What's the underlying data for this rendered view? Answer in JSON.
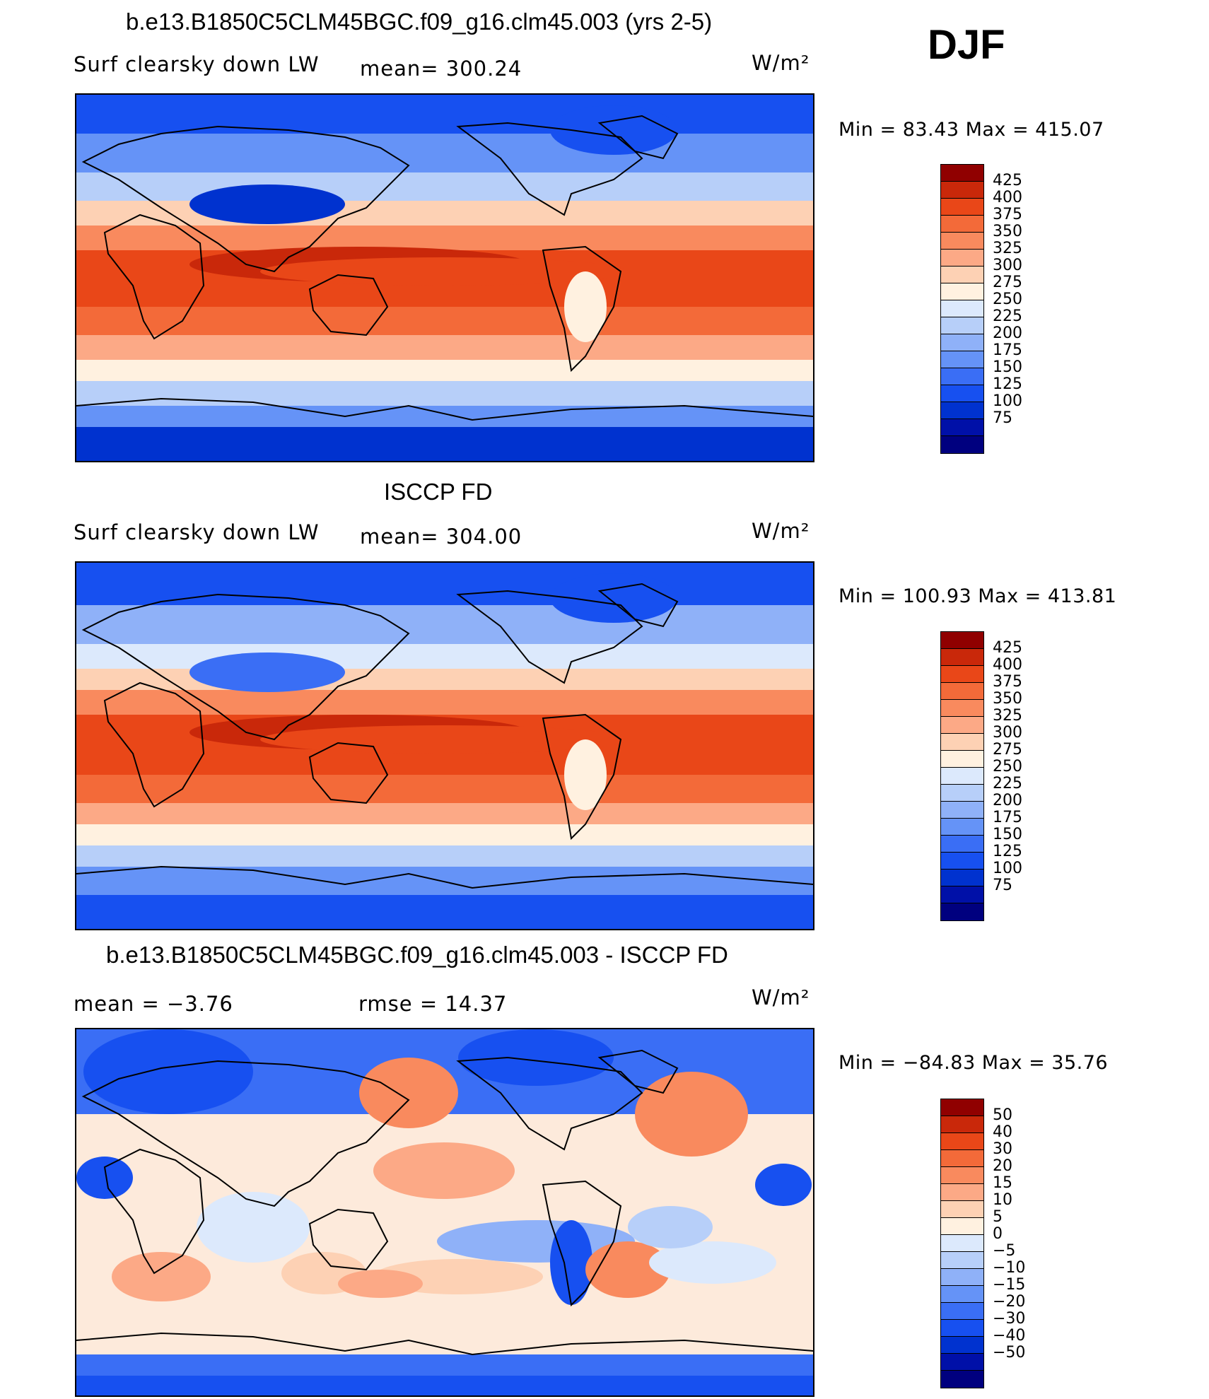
{
  "season": "DJF",
  "colors": {
    "sequential": [
      "#00007f",
      "#0010a8",
      "#0032cf",
      "#1750f0",
      "#3a6ef5",
      "#6593f7",
      "#8fb1f8",
      "#b7cff9",
      "#dce9fc",
      "#fff1e0",
      "#fdd1b4",
      "#fca986",
      "#f98a5e",
      "#f36a39",
      "#e94718",
      "#c9280a",
      "#900000"
    ],
    "diverging": [
      "#00007f",
      "#0010a8",
      "#0032cf",
      "#1750f0",
      "#3a6ef5",
      "#6593f7",
      "#8fb1f8",
      "#b7cff9",
      "#dce9fc",
      "#fff1e0",
      "#fdd1b4",
      "#fca986",
      "#f98a5e",
      "#f36a39",
      "#e94718",
      "#c9280a",
      "#900000"
    ]
  },
  "panels": [
    {
      "title": "b.e13.B1850C5CLM45BGC.f09_g16.clm45.003 (yrs 2-5)",
      "left_label": "Surf clearsky down LW",
      "center_label": "mean=  300.24",
      "units": "W/m²",
      "minmax": "Min  =    83.43  Max  =  415.07",
      "colorbar_icon": "sequential-colorbar",
      "map_icon": "world-map-contour"
    },
    {
      "title": "ISCCP FD",
      "left_label": "Surf clearsky down LW",
      "center_label": "mean=  304.00",
      "units": "W/m²",
      "minmax": "Min  =  100.93  Max  =  413.81",
      "colorbar_icon": "sequential-colorbar",
      "map_icon": "world-map-contour"
    },
    {
      "title": "b.e13.B1850C5CLM45BGC.f09_g16.clm45.003 - ISCCP FD",
      "left_label": "mean  =     −3.76",
      "center_label": "rmse  =     14.37",
      "units": "W/m²",
      "minmax": "Min  =  −84.83  Max  =    35.76",
      "colorbar_icon": "diverging-colorbar",
      "map_icon": "world-map-contour"
    }
  ],
  "colorbars": {
    "sequential_labels": [
      "425",
      "400",
      "375",
      "350",
      "325",
      "300",
      "275",
      "250",
      "225",
      "200",
      "175",
      "150",
      "125",
      "100",
      "75"
    ],
    "diverging_labels": [
      "50",
      "40",
      "30",
      "20",
      "15",
      "10",
      "5",
      "0",
      "−5",
      "−10",
      "−15",
      "−20",
      "−30",
      "−40",
      "−50"
    ]
  }
}
